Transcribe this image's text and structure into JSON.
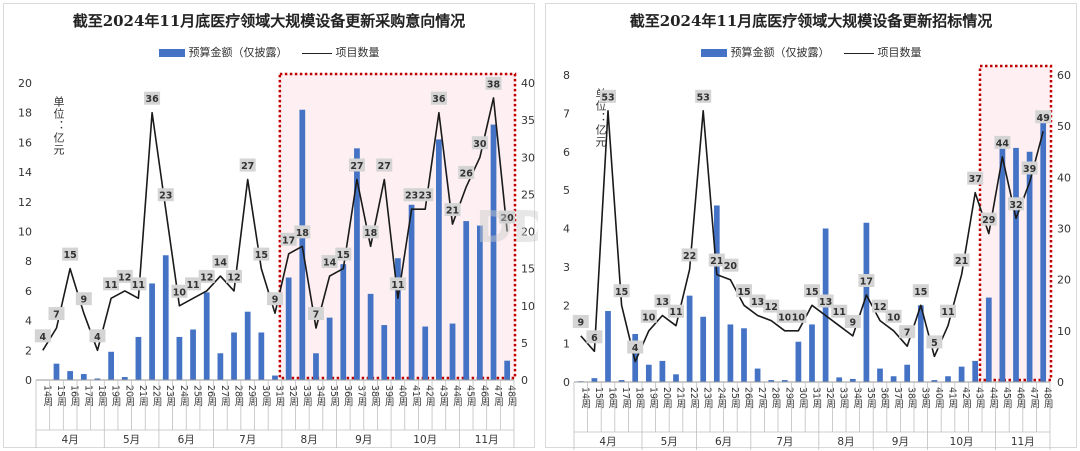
{
  "charts": [
    {
      "title": "截至2024年11月底医疗领域大规模设备更新采购意向情况",
      "legend": {
        "bar": "预算金额（仅披露）",
        "line": "项目数量"
      },
      "unit_label": "单位：亿元"
    },
    {
      "title": "截至2024年11月底医疗领域大规模设备更新招标情况",
      "legend": {
        "bar": "预算金额（仅披露）",
        "line": "项目数量"
      },
      "unit_label": "单位：亿元"
    }
  ],
  "watermark": "DDi",
  "chart_data": [
    {
      "type": "bar",
      "title": "截至2024年11月底医疗领域大规模设备更新采购意向情况",
      "categories": [
        "14周",
        "15周",
        "16周",
        "17周",
        "18周",
        "19周",
        "20周",
        "21周",
        "22周",
        "23周",
        "24周",
        "25周",
        "26周",
        "27周",
        "28周",
        "29周",
        "30周",
        "31周",
        "32周",
        "33周",
        "34周",
        "35周",
        "36周",
        "37周",
        "38周",
        "39周",
        "40周",
        "41周",
        "42周",
        "43周",
        "44周",
        "45周",
        "46周",
        "47周",
        "48周"
      ],
      "months": [
        {
          "label": "4月",
          "span": 5
        },
        {
          "label": "5月",
          "span": 4
        },
        {
          "label": "6月",
          "span": 4
        },
        {
          "label": "7月",
          "span": 5
        },
        {
          "label": "8月",
          "span": 4
        },
        {
          "label": "9月",
          "span": 4
        },
        {
          "label": "10月",
          "span": 5
        },
        {
          "label": "11月",
          "span": 4
        }
      ],
      "series": [
        {
          "name": "预算金额（仅披露）",
          "type": "bar",
          "axis": "left",
          "values": [
            0,
            1.1,
            0.6,
            0.4,
            0.1,
            1.9,
            0.2,
            2.9,
            6.5,
            8.4,
            2.9,
            3.4,
            5.9,
            1.8,
            3.2,
            4.6,
            3.2,
            0.3,
            6.9,
            18.2,
            1.8,
            4.2,
            7.8,
            15.6,
            5.8,
            3.7,
            8.2,
            11.8,
            3.6,
            16.2,
            3.8,
            10.7,
            10.4,
            17.2,
            1.3
          ]
        },
        {
          "name": "项目数量",
          "type": "line",
          "axis": "right",
          "values": [
            4,
            7,
            15,
            9,
            4,
            11,
            12,
            11,
            36,
            23,
            10,
            11,
            12,
            14,
            12,
            27,
            15,
            9,
            17,
            18,
            7,
            14,
            15,
            27,
            18,
            27,
            11,
            23,
            23,
            36,
            21,
            26,
            30,
            38,
            20
          ]
        }
      ],
      "ylim_left": [
        0,
        20
      ],
      "yticks_left": [
        0,
        2,
        4,
        6,
        8,
        10,
        12,
        14,
        16,
        18,
        20
      ],
      "ylim_right": [
        0,
        40
      ],
      "yticks_right": [
        0,
        5,
        10,
        15,
        20,
        25,
        30,
        35,
        40
      ],
      "ylabel": "单位：亿元",
      "highlight": {
        "from": "32周",
        "to": "48周"
      }
    },
    {
      "type": "bar",
      "title": "截至2024年11月底医疗领域大规模设备更新招标情况",
      "categories": [
        "14周",
        "15周",
        "16周",
        "17周",
        "18周",
        "19周",
        "20周",
        "21周",
        "22周",
        "23周",
        "24周",
        "25周",
        "26周",
        "27周",
        "28周",
        "29周",
        "30周",
        "31周",
        "32周",
        "33周",
        "34周",
        "35周",
        "36周",
        "37周",
        "38周",
        "39周",
        "40周",
        "41周",
        "42周",
        "43周",
        "44周",
        "45周",
        "46周",
        "47周",
        "48周"
      ],
      "months": [
        {
          "label": "4月",
          "span": 5
        },
        {
          "label": "5月",
          "span": 4
        },
        {
          "label": "6月",
          "span": 4
        },
        {
          "label": "7月",
          "span": 5
        },
        {
          "label": "8月",
          "span": 4
        },
        {
          "label": "9月",
          "span": 4
        },
        {
          "label": "10月",
          "span": 5
        },
        {
          "label": "11月",
          "span": 4
        }
      ],
      "series": [
        {
          "name": "预算金额（仅披露）",
          "type": "bar",
          "axis": "left",
          "values": [
            0.02,
            0.1,
            1.85,
            0.05,
            1.25,
            0.45,
            0.55,
            0.2,
            2.25,
            1.7,
            4.6,
            1.5,
            1.4,
            0.35,
            0.05,
            0.05,
            1.05,
            1.5,
            4.0,
            0.12,
            0.08,
            4.15,
            0.35,
            0.15,
            0.45,
            2.0,
            0.05,
            0.15,
            0.4,
            0.55,
            2.2,
            6.2,
            6.1,
            6.0,
            6.8
          ]
        },
        {
          "name": "项目数量",
          "type": "line",
          "axis": "right",
          "values": [
            9,
            6,
            53,
            15,
            4,
            10,
            13,
            11,
            22,
            53,
            21,
            20,
            15,
            13,
            12,
            10,
            10,
            15,
            13,
            11,
            9,
            17,
            12,
            10,
            7,
            15,
            5,
            11,
            21,
            37,
            29,
            44,
            32,
            39,
            49
          ]
        }
      ],
      "ylim_left": [
        0,
        8
      ],
      "yticks_left": [
        0,
        1,
        2,
        3,
        4,
        5,
        6,
        7,
        8
      ],
      "ylim_right": [
        0,
        60
      ],
      "yticks_right": [
        0,
        10,
        20,
        30,
        40,
        50,
        60
      ],
      "ylabel": "单位：亿元",
      "highlight": {
        "from": "44周",
        "to": "48周"
      }
    }
  ]
}
